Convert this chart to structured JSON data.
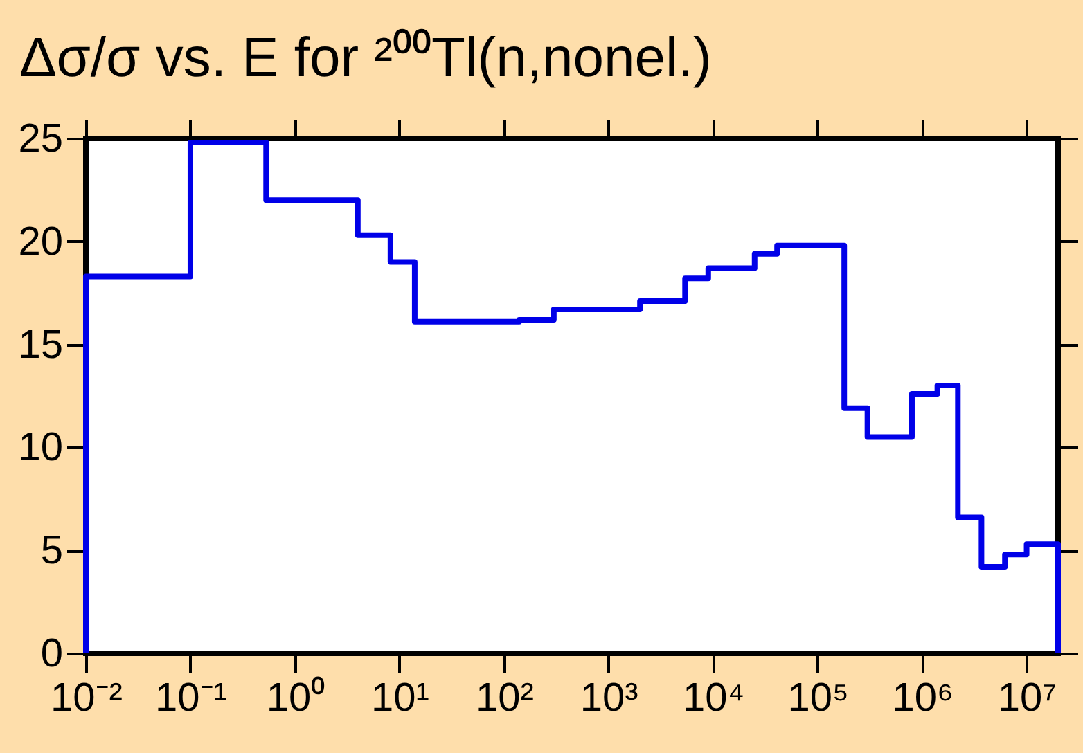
{
  "chart_data": {
    "type": "step",
    "title": "Δσ/σ vs. E for ²⁰⁰Tl(n,nonel.)",
    "x": [
      0.01,
      0.01,
      0.1,
      0.53,
      4.0,
      8.2,
      14,
      140,
      300,
      2000,
      5400,
      9000,
      25000,
      41000,
      180000,
      300000,
      800000,
      1400000,
      2200000,
      3700000,
      6200000,
      10000000,
      20000000
    ],
    "values": [
      0,
      18.3,
      24.8,
      22.0,
      20.3,
      19.0,
      16.1,
      16.2,
      16.7,
      17.1,
      18.2,
      18.7,
      19.4,
      19.8,
      11.9,
      10.5,
      12.6,
      13.0,
      6.6,
      4.2,
      4.8,
      5.3,
      0
    ],
    "color": "#0000e8",
    "log": "x",
    "xlim": [
      0.01,
      20000000
    ],
    "xticks": [
      {
        "value": 0.01,
        "label": "10⁻²"
      },
      {
        "value": 0.1,
        "label": "10⁻¹"
      },
      {
        "value": 1,
        "label": "10⁰"
      },
      {
        "value": 10,
        "label": "10¹"
      },
      {
        "value": 100,
        "label": "10²"
      },
      {
        "value": 1000,
        "label": "10³"
      },
      {
        "value": 10000,
        "label": "10⁴"
      },
      {
        "value": 100000,
        "label": "10⁵"
      },
      {
        "value": 1000000,
        "label": "10⁶"
      },
      {
        "value": 10000000,
        "label": "10⁷"
      }
    ],
    "ylim": [
      0,
      25
    ],
    "yticks": [
      0,
      5,
      10,
      15,
      20,
      25
    ]
  }
}
